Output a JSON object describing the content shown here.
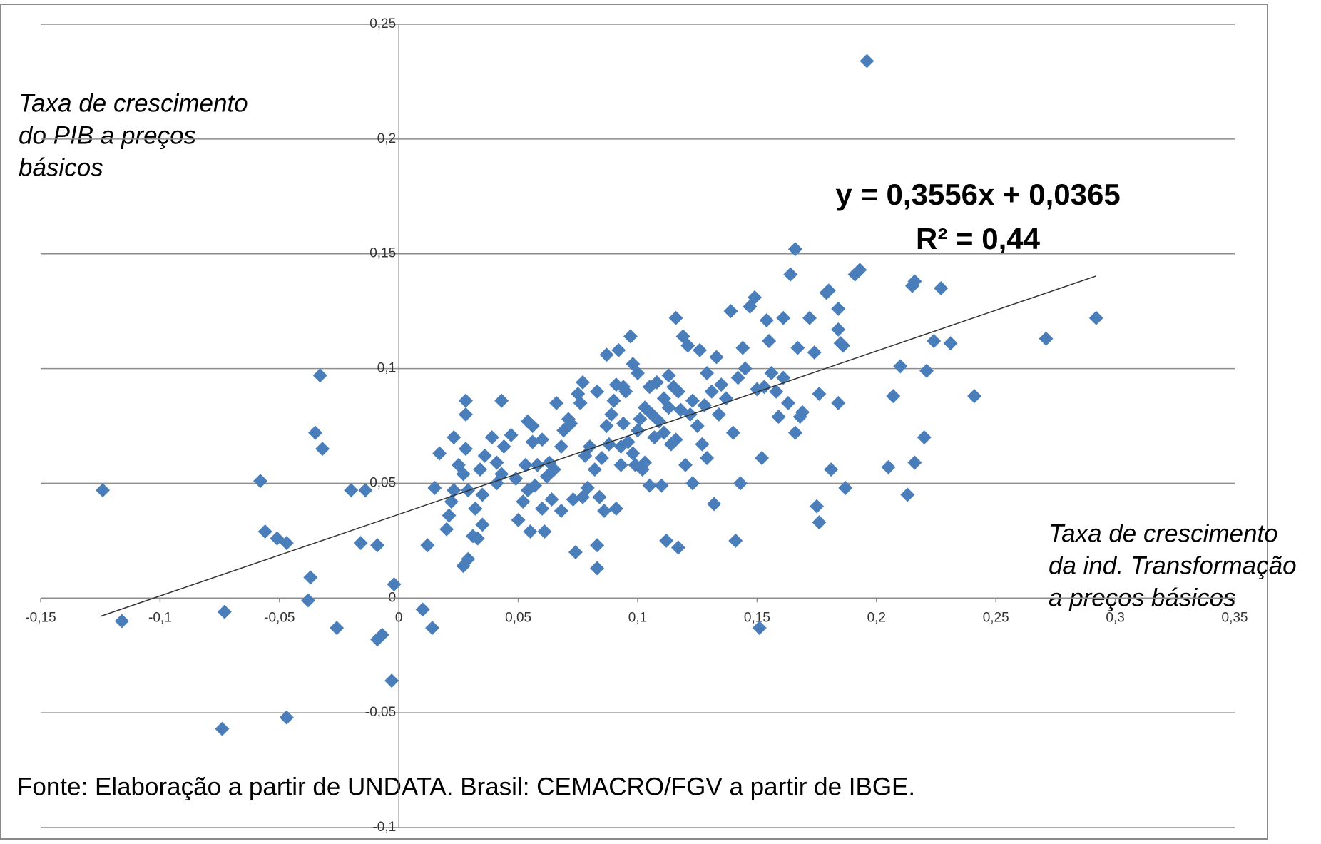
{
  "chart_data": {
    "type": "scatter",
    "y_label": [
      "Taxa de crescimento",
      "do PIB a preços",
      "básicos"
    ],
    "x_label": [
      "Taxa de crescimento",
      "da ind. Transformação",
      "a preços básicos"
    ],
    "source": "Fonte: Elaboração a partir de UNDATA. Brasil: CEMACRO/FGV a partir de IBGE.",
    "color": "#4a7ebb",
    "grid": true,
    "xlim": [
      -0.15,
      0.35
    ],
    "ylim": [
      -0.1,
      0.25
    ],
    "xticks": [
      {
        "value": -0.15,
        "label": "-0,15"
      },
      {
        "value": -0.1,
        "label": "-0,1"
      },
      {
        "value": -0.05,
        "label": "-0,05"
      },
      0,
      {
        "value": 0.05,
        "label": "0,05"
      },
      {
        "value": 0.1,
        "label": "0,1"
      },
      {
        "value": 0.15,
        "label": "0,15"
      },
      {
        "value": 0.2,
        "label": "0,2"
      },
      {
        "value": 0.25,
        "label": "0,25"
      },
      {
        "value": 0.3,
        "label": "0,3"
      },
      {
        "value": 0.35,
        "label": "0,35"
      }
    ],
    "yticks": [
      {
        "value": -0.1,
        "label": "-0,1"
      },
      {
        "value": -0.05,
        "label": "-0,05"
      },
      0,
      {
        "value": 0.05,
        "label": "0,05"
      },
      {
        "value": 0.1,
        "label": "0,1"
      },
      {
        "value": 0.15,
        "label": "0,15"
      },
      {
        "value": 0.2,
        "label": "0,2"
      },
      {
        "value": 0.25,
        "label": "0,25"
      }
    ],
    "trendline": {
      "slope": 0.3556,
      "intercept": 0.0365,
      "x_range": [
        -0.125,
        0.292
      ],
      "equation": "y = 0,3556x + 0,0365",
      "r_squared": "R² = 0,44"
    },
    "x": [
      -0.124,
      -0.116,
      -0.073,
      -0.074,
      -0.058,
      -0.056,
      -0.051,
      -0.047,
      -0.047,
      -0.038,
      -0.037,
      -0.035,
      -0.033,
      -0.032,
      -0.026,
      -0.02,
      -0.016,
      -0.014,
      -0.009,
      -0.009,
      -0.007,
      -0.003,
      -0.002,
      0.01,
      0.012,
      0.014,
      0.015,
      0.017,
      0.02,
      0.021,
      0.022,
      0.023,
      0.023,
      0.025,
      0.027,
      0.027,
      0.028,
      0.028,
      0.029,
      0.028,
      0.029,
      0.031,
      0.032,
      0.033,
      0.034,
      0.035,
      0.035,
      0.036,
      0.039,
      0.041,
      0.041,
      0.043,
      0.043,
      0.044,
      0.047,
      0.049,
      0.05,
      0.052,
      0.053,
      0.054,
      0.054,
      0.055,
      0.056,
      0.056,
      0.057,
      0.058,
      0.06,
      0.06,
      0.061,
      0.062,
      0.063,
      0.064,
      0.065,
      0.066,
      0.068,
      0.068,
      0.069,
      0.071,
      0.072,
      0.073,
      0.074,
      0.075,
      0.076,
      0.077,
      0.077,
      0.078,
      0.079,
      0.08,
      0.082,
      0.083,
      0.083,
      0.083,
      0.084,
      0.085,
      0.086,
      0.087,
      0.087,
      0.088,
      0.089,
      0.09,
      0.091,
      0.091,
      0.092,
      0.093,
      0.093,
      0.094,
      0.094,
      0.095,
      0.096,
      0.097,
      0.098,
      0.098,
      0.099,
      0.1,
      0.1,
      0.101,
      0.102,
      0.103,
      0.103,
      0.105,
      0.105,
      0.106,
      0.107,
      0.108,
      0.109,
      0.11,
      0.111,
      0.111,
      0.112,
      0.113,
      0.113,
      0.114,
      0.115,
      0.116,
      0.116,
      0.117,
      0.117,
      0.118,
      0.119,
      0.12,
      0.121,
      0.122,
      0.123,
      0.123,
      0.125,
      0.126,
      0.127,
      0.128,
      0.129,
      0.129,
      0.131,
      0.132,
      0.133,
      0.134,
      0.135,
      0.137,
      0.139,
      0.14,
      0.141,
      0.142,
      0.143,
      0.144,
      0.145,
      0.147,
      0.149,
      0.15,
      0.151,
      0.152,
      0.153,
      0.154,
      0.155,
      0.156,
      0.158,
      0.159,
      0.161,
      0.161,
      0.163,
      0.164,
      0.166,
      0.166,
      0.167,
      0.168,
      0.169,
      0.172,
      0.174,
      0.175,
      0.176,
      0.176,
      0.179,
      0.18,
      0.181,
      0.184,
      0.184,
      0.184,
      0.185,
      0.186,
      0.187,
      0.191,
      0.193,
      0.196,
      0.205,
      0.207,
      0.21,
      0.213,
      0.215,
      0.216,
      0.216,
      0.22,
      0.221,
      0.224,
      0.227,
      0.231,
      0.241,
      0.271,
      0.292
    ],
    "values": [
      0.047,
      -0.01,
      -0.006,
      -0.057,
      0.051,
      0.029,
      0.026,
      0.024,
      -0.052,
      -0.001,
      0.009,
      0.072,
      0.097,
      0.065,
      -0.013,
      0.047,
      0.024,
      0.047,
      0.023,
      -0.018,
      -0.016,
      -0.036,
      0.006,
      -0.005,
      0.023,
      -0.013,
      0.048,
      0.063,
      0.03,
      0.036,
      0.042,
      0.07,
      0.047,
      0.058,
      0.054,
      0.014,
      0.08,
      0.086,
      0.017,
      0.065,
      0.047,
      0.027,
      0.039,
      0.026,
      0.056,
      0.032,
      0.045,
      0.062,
      0.07,
      0.05,
      0.059,
      0.054,
      0.086,
      0.066,
      0.071,
      0.052,
      0.034,
      0.042,
      0.058,
      0.047,
      0.077,
      0.029,
      0.068,
      0.075,
      0.049,
      0.058,
      0.069,
      0.039,
      0.029,
      0.053,
      0.059,
      0.043,
      0.056,
      0.085,
      0.066,
      0.038,
      0.073,
      0.078,
      0.076,
      0.043,
      0.02,
      0.089,
      0.085,
      0.094,
      0.044,
      0.062,
      0.048,
      0.066,
      0.056,
      0.013,
      0.023,
      0.09,
      0.044,
      0.061,
      0.038,
      0.106,
      0.075,
      0.067,
      0.08,
      0.086,
      0.093,
      0.039,
      0.108,
      0.066,
      0.058,
      0.076,
      0.092,
      0.09,
      0.068,
      0.114,
      0.063,
      0.102,
      0.058,
      0.098,
      0.073,
      0.078,
      0.056,
      0.083,
      0.059,
      0.092,
      0.049,
      0.08,
      0.07,
      0.094,
      0.077,
      0.049,
      0.087,
      0.072,
      0.025,
      0.097,
      0.083,
      0.067,
      0.092,
      0.069,
      0.122,
      0.022,
      0.09,
      0.082,
      0.114,
      0.058,
      0.11,
      0.08,
      0.05,
      0.086,
      0.075,
      0.108,
      0.067,
      0.084,
      0.098,
      0.061,
      0.09,
      0.041,
      0.105,
      0.08,
      0.093,
      0.087,
      0.125,
      0.072,
      0.025,
      0.096,
      0.05,
      0.109,
      0.1,
      0.127,
      0.131,
      0.091,
      -0.013,
      0.061,
      0.092,
      0.121,
      0.112,
      0.098,
      0.09,
      0.079,
      0.096,
      0.122,
      0.085,
      0.141,
      0.072,
      0.152,
      0.109,
      0.079,
      0.081,
      0.122,
      0.107,
      0.04,
      0.089,
      0.033,
      0.133,
      0.134,
      0.056,
      0.126,
      0.117,
      0.085,
      0.111,
      0.11,
      0.048,
      0.141,
      0.143,
      0.234,
      0.057,
      0.088,
      0.101,
      0.045,
      0.136,
      0.138,
      0.059,
      0.07,
      0.099,
      0.112,
      0.135,
      0.111,
      0.088,
      0.113,
      0.122
    ]
  }
}
